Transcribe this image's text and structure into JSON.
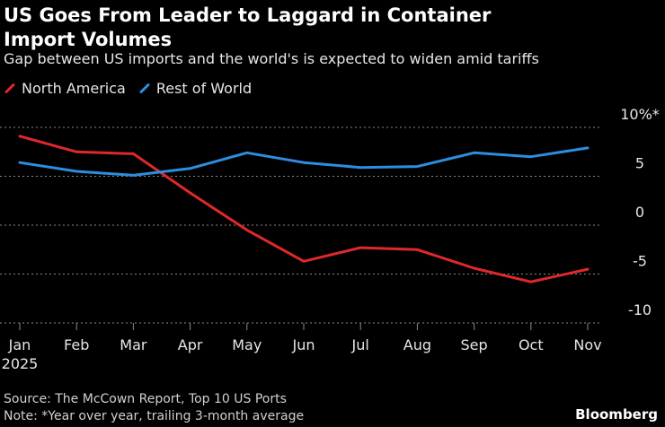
{
  "title": "US Goes From Leader to Laggard in Container Import Volumes",
  "subtitle": "Gap between US imports and the world's is expected to widen amid tariffs",
  "source": "Source: The McCown Report, Top 10 US Ports",
  "note": "Note: *Year over year, trailing 3-month average",
  "brand": "Bloomberg",
  "colors": {
    "north_america": "#e0282a",
    "rest_of_world": "#2d8de0"
  },
  "chart_data": {
    "type": "line",
    "categories": [
      "Jan",
      "Feb",
      "Mar",
      "Apr",
      "May",
      "Jun",
      "Jul",
      "Aug",
      "Sep",
      "Oct",
      "Nov"
    ],
    "year_label": "2025",
    "series": [
      {
        "name": "North America",
        "values": [
          9.1,
          7.5,
          7.3,
          3.3,
          -0.5,
          -3.7,
          -2.3,
          -2.5,
          -4.4,
          -5.8,
          -4.5
        ]
      },
      {
        "name": "Rest of World",
        "values": [
          6.4,
          5.5,
          5.1,
          5.8,
          7.4,
          6.4,
          5.9,
          6.0,
          7.4,
          7.0,
          7.9
        ]
      }
    ],
    "yticks": [
      10,
      5,
      0,
      -5,
      -10
    ],
    "ytick_labels": [
      "10%*",
      "5",
      "0",
      "-5",
      "-10"
    ],
    "ylim": [
      -10,
      10
    ],
    "grid": true,
    "legend": "top-left"
  }
}
